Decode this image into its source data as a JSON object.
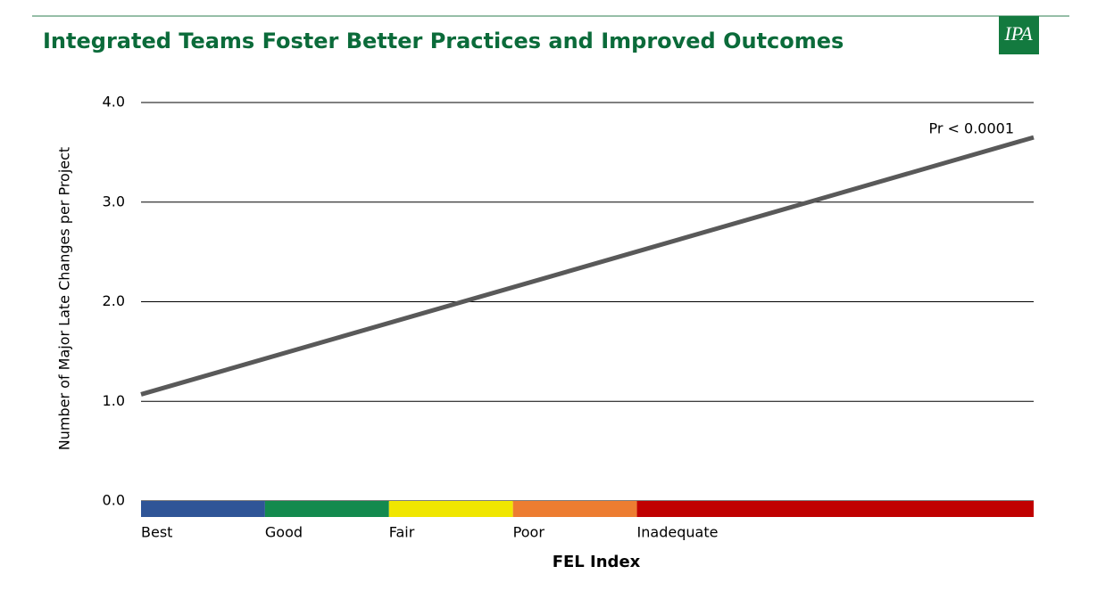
{
  "chart_data": {
    "type": "line",
    "title": "Integrated Teams Foster Better Practices and Improved Outcomes",
    "logo": "IPA",
    "y_label": "Number of Major Late Changes per Project",
    "x_label": "FEL Index",
    "annotation": "Pr < 0.0001",
    "x": [
      0,
      7.2
    ],
    "series": [
      {
        "color": "#595959",
        "values": [
          1.07,
          3.65
        ]
      }
    ],
    "xlim": [
      0,
      7.2
    ],
    "ylim": [
      0,
      4
    ],
    "yticks": [
      {
        "value": 0,
        "label": "0.0"
      },
      {
        "value": 1,
        "label": "1.0"
      },
      {
        "value": 2,
        "label": "2.0"
      },
      {
        "value": 3,
        "label": "3.0"
      },
      {
        "value": 4,
        "label": "4.0"
      }
    ],
    "grid": true,
    "bands": {
      "labels": [
        "Best",
        "Good",
        "Fair",
        "Poor",
        "Inadequate"
      ],
      "colors": [
        "#2f5597",
        "#138a4e",
        "#f0e600",
        "#ed7d31",
        "#c00000"
      ],
      "edges": [
        0,
        1,
        2,
        3,
        4,
        7.2
      ]
    }
  }
}
